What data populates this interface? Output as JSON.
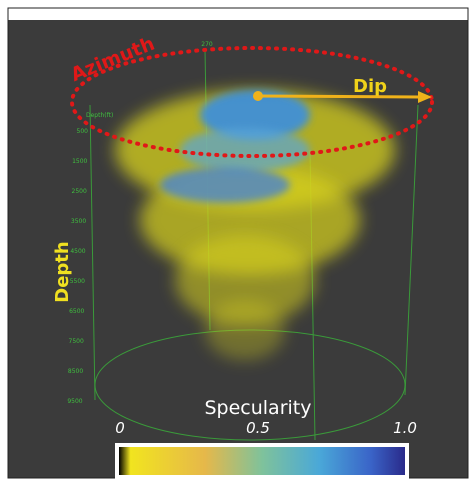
{
  "annotations": {
    "azimuth": "Azimuth",
    "dip": "Dip",
    "depth": "Depth",
    "top_label": "270"
  },
  "depth_axis": {
    "title": "Depth(ft)",
    "labels": [
      "500",
      "1500",
      "2500",
      "3500",
      "4500",
      "5500",
      "6500",
      "7500",
      "8500",
      "9500"
    ]
  },
  "colorbar": {
    "title": "Specularity",
    "labels": [
      "0",
      "0.5",
      "1.0"
    ]
  }
}
